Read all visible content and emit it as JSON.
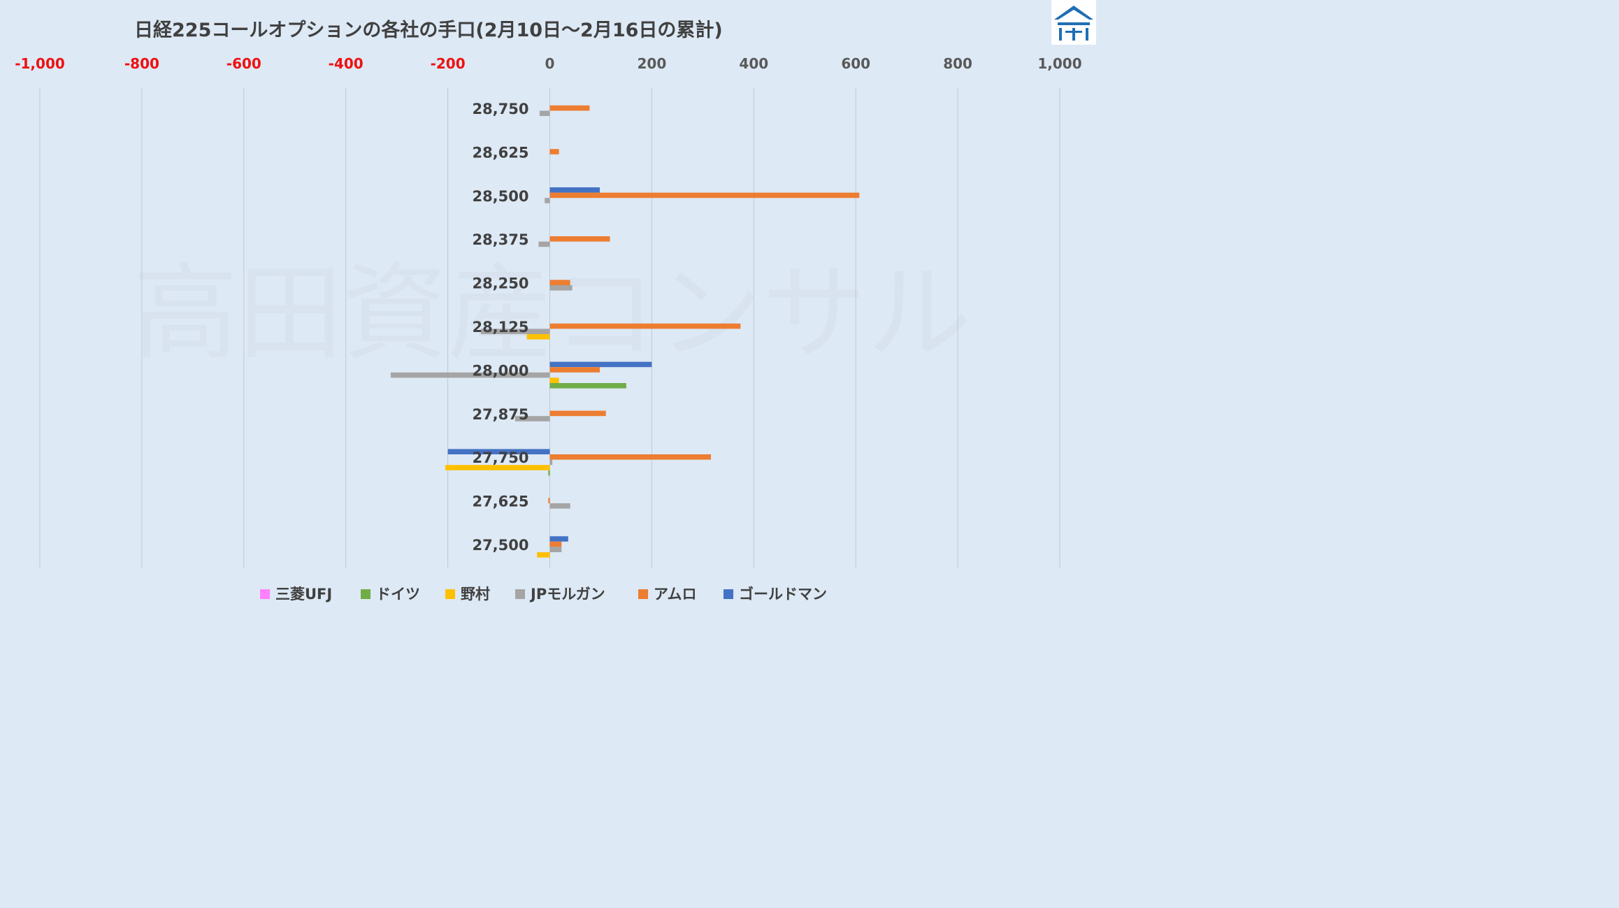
{
  "chart_data": {
    "type": "bar",
    "orientation": "horizontal",
    "title": "日経225コールオプションの各社の手口(2月10日～2月16日の累計)",
    "xlim": [
      -1000,
      1000
    ],
    "x_ticks": [
      {
        "value": -1000,
        "label": "-1,000"
      },
      {
        "value": -800,
        "label": "-800"
      },
      {
        "value": -600,
        "label": "-600"
      },
      {
        "value": -400,
        "label": "-400"
      },
      {
        "value": -200,
        "label": "-200"
      },
      {
        "value": 0,
        "label": "0"
      },
      {
        "value": 200,
        "label": "200"
      },
      {
        "value": 400,
        "label": "400"
      },
      {
        "value": 600,
        "label": "600"
      },
      {
        "value": 800,
        "label": "800"
      },
      {
        "value": 1000,
        "label": "1,000"
      }
    ],
    "negative_tick_color": "#ee1111",
    "positive_tick_color": "#595959",
    "grid": true,
    "legend_position": "bottom",
    "categories": [
      "28,750",
      "28,625",
      "28,500",
      "28,375",
      "28,250",
      "28,125",
      "28,000",
      "27,875",
      "27,750",
      "27,625",
      "27,500"
    ],
    "series": [
      {
        "name": "三菱UFJ",
        "color": "#ff80ff",
        "values": [
          0,
          0,
          0,
          0,
          0,
          0,
          0,
          0,
          0,
          0,
          0
        ]
      },
      {
        "name": "ドイツ",
        "color": "#70ad47",
        "values": [
          0,
          0,
          0,
          0,
          0,
          0,
          150,
          0,
          -3,
          0,
          0
        ]
      },
      {
        "name": "野村",
        "color": "#ffc000",
        "values": [
          0,
          0,
          0,
          0,
          0,
          -45,
          18,
          0,
          -205,
          0,
          -25
        ]
      },
      {
        "name": "JPモルガン",
        "color": "#a5a5a5",
        "values": [
          -20,
          0,
          -10,
          -22,
          44,
          -135,
          -312,
          -68,
          5,
          40,
          23
        ]
      },
      {
        "name": "アムロ",
        "color": "#ed7d31",
        "values": [
          78,
          18,
          607,
          118,
          40,
          374,
          98,
          110,
          316,
          -3,
          23
        ]
      },
      {
        "name": "ゴールドマン",
        "color": "#4472c4",
        "values": [
          0,
          0,
          98,
          0,
          0,
          0,
          200,
          0,
          -200,
          0,
          36
        ]
      }
    ]
  },
  "watermark": "高田資産コンサル"
}
